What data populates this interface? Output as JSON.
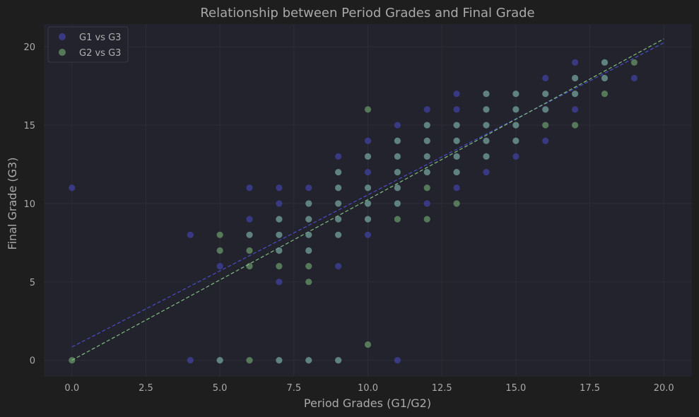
{
  "chart_data": {
    "type": "scatter",
    "title": "Relationship between Period Grades and Final Grade",
    "xlabel": "Period Grades (G1/G2)",
    "ylabel": "Final Grade (G3)",
    "xlim": [
      -0.95,
      20.95
    ],
    "ylim": [
      -1.05,
      21.45
    ],
    "xticks": [
      "0.0",
      "2.5",
      "5.0",
      "7.5",
      "10.0",
      "12.5",
      "15.0",
      "17.5",
      "20.0"
    ],
    "xtick_values": [
      0,
      2.5,
      5,
      7.5,
      10,
      12.5,
      15,
      17.5,
      20
    ],
    "yticks": [
      "0",
      "5",
      "10",
      "15",
      "20"
    ],
    "ytick_values": [
      0,
      5,
      10,
      15,
      20
    ],
    "grid": true,
    "legend_position": "top-left",
    "background": "#22232c",
    "figure_background": "#1e1e1e",
    "series": [
      {
        "name": "G1 vs G3",
        "color": "#4c4ccc",
        "points": [
          [
            0,
            11
          ],
          [
            4,
            8
          ],
          [
            4,
            0
          ],
          [
            5,
            6
          ],
          [
            5,
            0
          ],
          [
            6,
            11
          ],
          [
            6,
            9
          ],
          [
            6,
            8
          ],
          [
            7,
            11
          ],
          [
            7,
            10
          ],
          [
            7,
            9
          ],
          [
            7,
            8
          ],
          [
            7,
            7
          ],
          [
            7,
            5
          ],
          [
            7,
            0
          ],
          [
            8,
            11
          ],
          [
            8,
            10
          ],
          [
            8,
            9
          ],
          [
            8,
            8
          ],
          [
            8,
            7
          ],
          [
            8,
            0
          ],
          [
            9,
            13
          ],
          [
            9,
            12
          ],
          [
            9,
            11
          ],
          [
            9,
            10
          ],
          [
            9,
            9
          ],
          [
            9,
            8
          ],
          [
            9,
            6
          ],
          [
            9,
            0
          ],
          [
            10,
            14
          ],
          [
            10,
            13
          ],
          [
            10,
            12
          ],
          [
            10,
            11
          ],
          [
            10,
            10
          ],
          [
            10,
            9
          ],
          [
            10,
            8
          ],
          [
            11,
            15
          ],
          [
            11,
            14
          ],
          [
            11,
            13
          ],
          [
            11,
            12
          ],
          [
            11,
            11
          ],
          [
            11,
            10
          ],
          [
            11,
            0
          ],
          [
            12,
            16
          ],
          [
            12,
            15
          ],
          [
            12,
            14
          ],
          [
            12,
            13
          ],
          [
            12,
            12
          ],
          [
            12,
            10
          ],
          [
            13,
            17
          ],
          [
            13,
            16
          ],
          [
            13,
            15
          ],
          [
            13,
            14
          ],
          [
            13,
            13
          ],
          [
            13,
            12
          ],
          [
            13,
            11
          ],
          [
            14,
            17
          ],
          [
            14,
            16
          ],
          [
            14,
            15
          ],
          [
            14,
            14
          ],
          [
            14,
            13
          ],
          [
            14,
            12
          ],
          [
            15,
            17
          ],
          [
            15,
            16
          ],
          [
            15,
            15
          ],
          [
            15,
            14
          ],
          [
            15,
            13
          ],
          [
            16,
            18
          ],
          [
            16,
            17
          ],
          [
            16,
            16
          ],
          [
            16,
            14
          ],
          [
            17,
            19
          ],
          [
            17,
            18
          ],
          [
            17,
            17
          ],
          [
            17,
            16
          ],
          [
            18,
            19
          ],
          [
            18,
            18
          ],
          [
            19,
            18
          ]
        ],
        "fit": {
          "x": [
            0,
            20
          ],
          "y": [
            0.85,
            20.25
          ]
        }
      },
      {
        "name": "G2 vs G3",
        "color": "#7fbf7f",
        "points": [
          [
            0,
            0
          ],
          [
            5,
            8
          ],
          [
            5,
            7
          ],
          [
            5,
            0
          ],
          [
            6,
            8
          ],
          [
            6,
            7
          ],
          [
            6,
            6
          ],
          [
            6,
            0
          ],
          [
            7,
            9
          ],
          [
            7,
            8
          ],
          [
            7,
            7
          ],
          [
            7,
            6
          ],
          [
            7,
            0
          ],
          [
            8,
            10
          ],
          [
            8,
            9
          ],
          [
            8,
            8
          ],
          [
            8,
            7
          ],
          [
            8,
            6
          ],
          [
            8,
            5
          ],
          [
            8,
            0
          ],
          [
            9,
            12
          ],
          [
            9,
            11
          ],
          [
            9,
            10
          ],
          [
            9,
            9
          ],
          [
            9,
            8
          ],
          [
            9,
            0
          ],
          [
            10,
            16
          ],
          [
            10,
            13
          ],
          [
            10,
            11
          ],
          [
            10,
            10
          ],
          [
            10,
            9
          ],
          [
            10,
            1
          ],
          [
            11,
            14
          ],
          [
            11,
            13
          ],
          [
            11,
            12
          ],
          [
            11,
            11
          ],
          [
            11,
            10
          ],
          [
            11,
            9
          ],
          [
            12,
            15
          ],
          [
            12,
            14
          ],
          [
            12,
            13
          ],
          [
            12,
            12
          ],
          [
            12,
            11
          ],
          [
            12,
            9
          ],
          [
            13,
            15
          ],
          [
            13,
            14
          ],
          [
            13,
            13
          ],
          [
            13,
            12
          ],
          [
            13,
            10
          ],
          [
            14,
            17
          ],
          [
            14,
            16
          ],
          [
            14,
            15
          ],
          [
            14,
            14
          ],
          [
            14,
            13
          ],
          [
            15,
            17
          ],
          [
            15,
            16
          ],
          [
            15,
            15
          ],
          [
            15,
            14
          ],
          [
            16,
            17
          ],
          [
            16,
            16
          ],
          [
            16,
            15
          ],
          [
            17,
            18
          ],
          [
            17,
            17
          ],
          [
            17,
            15
          ],
          [
            18,
            19
          ],
          [
            18,
            18
          ],
          [
            18,
            17
          ],
          [
            19,
            19
          ]
        ],
        "fit": {
          "x": [
            0,
            20
          ],
          "y": [
            0.0,
            20.5
          ]
        }
      }
    ]
  }
}
